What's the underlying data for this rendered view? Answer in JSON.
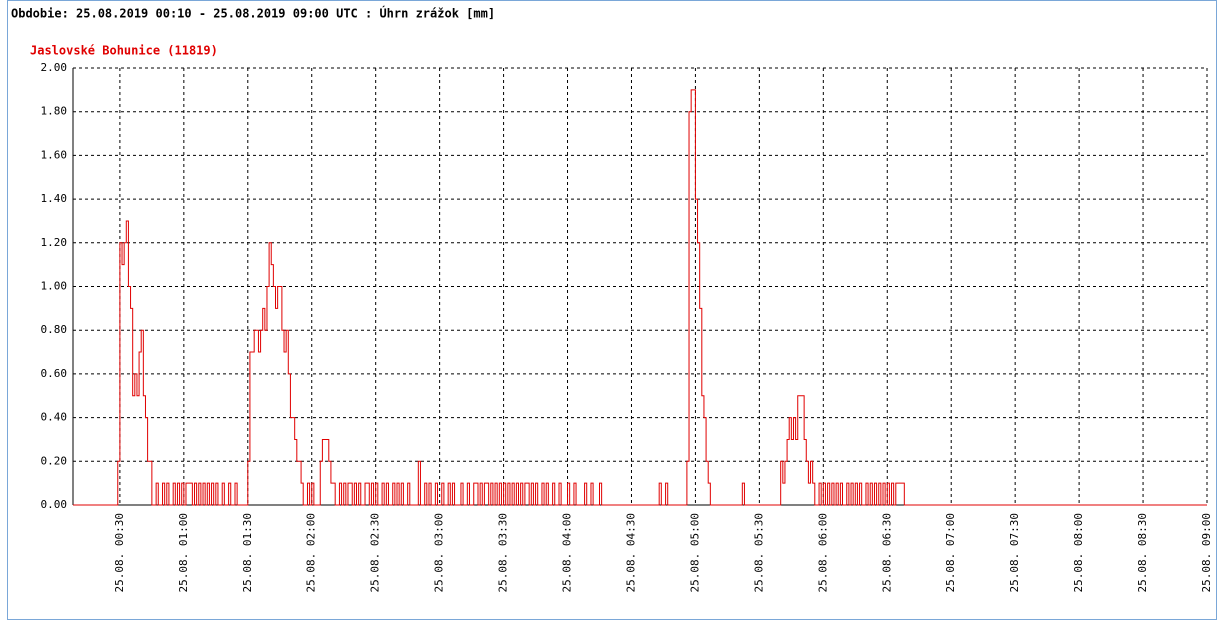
{
  "chart_data": {
    "type": "step",
    "title": "Obdobie: 25.08.2019 00:10 - 25.08.2019 09:00 UTC : Úhrn zrážok [mm]",
    "subtitle": "Jaslovské Bohunice (11819)",
    "color": "#e00000",
    "grid": true,
    "xlim": [
      8,
      540
    ],
    "ylim": [
      0,
      2
    ],
    "yticks": [
      {
        "value": 0,
        "label": "0.00"
      },
      {
        "value": 0.2,
        "label": "0.20"
      },
      {
        "value": 0.4,
        "label": "0.40"
      },
      {
        "value": 0.6,
        "label": "0.60"
      },
      {
        "value": 0.8,
        "label": "0.80"
      },
      {
        "value": 1,
        "label": "1.00"
      },
      {
        "value": 1.2,
        "label": "1.20"
      },
      {
        "value": 1.4,
        "label": "1.40"
      },
      {
        "value": 1.6,
        "label": "1.60"
      },
      {
        "value": 1.8,
        "label": "1.80"
      },
      {
        "value": 2,
        "label": "2.00"
      }
    ],
    "xticks": [
      {
        "value": 30,
        "label": "25.08. 00:30"
      },
      {
        "value": 60,
        "label": "25.08. 01:00"
      },
      {
        "value": 90,
        "label": "25.08. 01:30"
      },
      {
        "value": 120,
        "label": "25.08. 02:00"
      },
      {
        "value": 150,
        "label": "25.08. 02:30"
      },
      {
        "value": 180,
        "label": "25.08. 03:00"
      },
      {
        "value": 210,
        "label": "25.08. 03:30"
      },
      {
        "value": 240,
        "label": "25.08. 04:00"
      },
      {
        "value": 270,
        "label": "25.08. 04:30"
      },
      {
        "value": 300,
        "label": "25.08. 05:00"
      },
      {
        "value": 330,
        "label": "25.08. 05:30"
      },
      {
        "value": 360,
        "label": "25.08. 06:00"
      },
      {
        "value": 390,
        "label": "25.08. 06:30"
      },
      {
        "value": 420,
        "label": "25.08. 07:00"
      },
      {
        "value": 450,
        "label": "25.08. 07:30"
      },
      {
        "value": 480,
        "label": "25.08. 08:00"
      },
      {
        "value": 510,
        "label": "25.08. 08:30"
      },
      {
        "value": 540,
        "label": "25.08. 09:00"
      }
    ],
    "x": [
      8,
      29,
      30,
      31,
      32,
      33,
      34,
      35,
      36,
      37,
      38,
      39,
      40,
      41,
      42,
      43,
      45,
      47,
      48,
      50,
      51,
      52,
      53,
      55,
      56,
      57,
      58,
      59,
      60,
      61,
      64,
      65,
      66,
      67,
      68,
      69,
      70,
      71,
      72,
      73,
      74,
      75,
      76,
      78,
      79,
      81,
      82,
      84,
      85,
      90,
      91,
      93,
      95,
      96,
      97,
      98,
      99,
      100,
      101,
      102,
      103,
      104,
      106,
      107,
      108,
      109,
      110,
      112,
      113,
      115,
      116,
      118,
      119,
      120,
      121,
      124,
      125,
      128,
      129,
      131,
      133,
      134,
      135,
      136,
      137,
      139,
      140,
      141,
      142,
      143,
      145,
      147,
      148,
      149,
      150,
      151,
      153,
      154,
      155,
      156,
      158,
      159,
      160,
      161,
      162,
      163,
      165,
      166,
      170,
      171,
      173,
      174,
      175,
      176,
      178,
      179,
      181,
      182,
      184,
      185,
      186,
      187,
      190,
      191,
      193,
      194,
      196,
      198,
      199,
      200,
      201,
      203,
      204,
      205,
      206,
      207,
      208,
      209,
      210,
      211,
      212,
      213,
      214,
      215,
      216,
      217,
      218,
      219,
      220,
      222,
      223,
      224,
      225,
      226,
      228,
      229,
      230,
      231,
      233,
      234,
      236,
      237,
      240,
      241,
      243,
      244,
      248,
      249,
      251,
      252,
      255,
      256,
      283,
      284,
      286,
      287,
      296,
      297,
      298,
      300,
      301,
      302,
      303,
      304,
      305,
      306,
      307,
      322,
      323,
      340,
      341,
      342,
      343,
      344,
      345,
      346,
      347,
      348,
      351,
      352,
      353,
      354,
      355,
      356,
      358,
      359,
      360,
      361,
      362,
      363,
      364,
      365,
      366,
      367,
      368,
      369,
      371,
      372,
      373,
      374,
      375,
      376,
      377,
      378,
      380,
      381,
      382,
      383,
      384,
      385,
      386,
      387,
      388,
      389,
      390,
      391,
      392,
      393,
      394,
      398,
      540
    ],
    "values": [
      0,
      0.2,
      1.2,
      1.1,
      1.2,
      1.3,
      1.0,
      0.9,
      0.5,
      0.6,
      0.5,
      0.7,
      0.8,
      0.5,
      0.4,
      0.2,
      0,
      0.1,
      0,
      0.1,
      0,
      0.1,
      0,
      0.1,
      0,
      0.1,
      0,
      0.1,
      0,
      0.1,
      0,
      0.1,
      0,
      0.1,
      0,
      0.1,
      0,
      0.1,
      0,
      0.1,
      0,
      0.1,
      0,
      0.1,
      0,
      0.1,
      0,
      0.1,
      0,
      0.2,
      0.7,
      0.8,
      0.7,
      0.8,
      0.9,
      0.8,
      1.0,
      1.2,
      1.1,
      1.0,
      0.9,
      1.0,
      0.8,
      0.7,
      0.8,
      0.6,
      0.4,
      0.3,
      0.2,
      0.1,
      0,
      0.1,
      0,
      0.1,
      0,
      0.2,
      0.3,
      0.2,
      0.1,
      0,
      0.1,
      0,
      0.1,
      0,
      0.1,
      0,
      0.1,
      0,
      0.1,
      0,
      0.1,
      0,
      0.1,
      0,
      0.1,
      0,
      0.1,
      0,
      0.1,
      0,
      0.1,
      0,
      0.1,
      0,
      0.1,
      0,
      0.1,
      0,
      0.2,
      0,
      0.1,
      0,
      0.1,
      0,
      0.1,
      0,
      0.1,
      0,
      0.1,
      0,
      0.1,
      0,
      0.1,
      0,
      0.1,
      0,
      0.1,
      0,
      0.1,
      0,
      0.1,
      0,
      0.1,
      0,
      0.1,
      0,
      0.1,
      0,
      0.1,
      0,
      0.1,
      0,
      0.1,
      0,
      0.1,
      0,
      0.1,
      0,
      0.1,
      0,
      0.1,
      0,
      0.1,
      0,
      0.1,
      0,
      0.1,
      0,
      0.1,
      0,
      0.1,
      0,
      0.1,
      0,
      0.1,
      0,
      0.1,
      0,
      0.1,
      0,
      0.1,
      0,
      0.1,
      0,
      0.1,
      0,
      0.2,
      1.8,
      1.9,
      1.4,
      1.2,
      0.9,
      0.5,
      0.4,
      0.2,
      0.1,
      0,
      0.1,
      0,
      0.2,
      0.1,
      0.2,
      0.3,
      0.4,
      0.3,
      0.4,
      0.3,
      0.5,
      0.3,
      0.2,
      0.1,
      0.2,
      0.1,
      0,
      0.1,
      0,
      0.1,
      0,
      0.1,
      0,
      0.1,
      0,
      0.1,
      0,
      0.1,
      0,
      0.1,
      0,
      0.1,
      0,
      0.1,
      0,
      0.1,
      0,
      0.1,
      0,
      0.1,
      0,
      0.1,
      0,
      0.1,
      0,
      0.1,
      0,
      0.1,
      0,
      0.1,
      0,
      0.1,
      0,
      0
    ]
  }
}
